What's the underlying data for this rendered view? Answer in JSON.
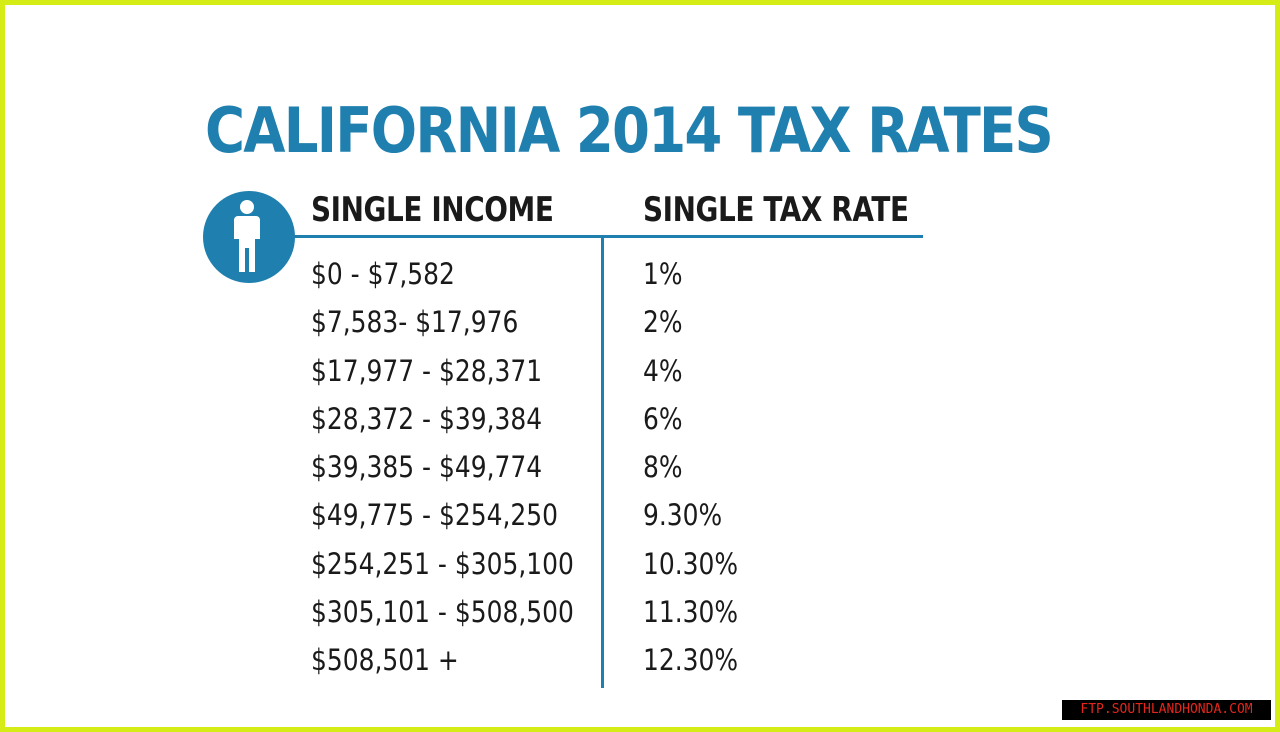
{
  "title": "CALIFORNIA 2014 TAX RATES",
  "icon": "person-icon",
  "accent_color": "#1f7fae",
  "frame_color": "#d6ec16",
  "table": {
    "headers": {
      "income": "SINGLE INCOME",
      "rate": "SINGLE TAX RATE"
    },
    "rows": [
      {
        "income": "$0 - $7,582",
        "rate": "1%"
      },
      {
        "income": "$7,583- $17,976",
        "rate": "2%"
      },
      {
        "income": "$17,977 - $28,371",
        "rate": "4%"
      },
      {
        "income": "$28,372 - $39,384",
        "rate": "6%"
      },
      {
        "income": "$39,385 - $49,774",
        "rate": "8%"
      },
      {
        "income": "$49,775 - $254,250",
        "rate": "9.30%"
      },
      {
        "income": "$254,251 - $305,100",
        "rate": "10.30%"
      },
      {
        "income": "$305,101 - $508,500",
        "rate": "11.30%"
      },
      {
        "income": "$508,501 +",
        "rate": "12.30%"
      }
    ]
  },
  "watermark": "FTP.SOUTHLANDHONDA.COM"
}
